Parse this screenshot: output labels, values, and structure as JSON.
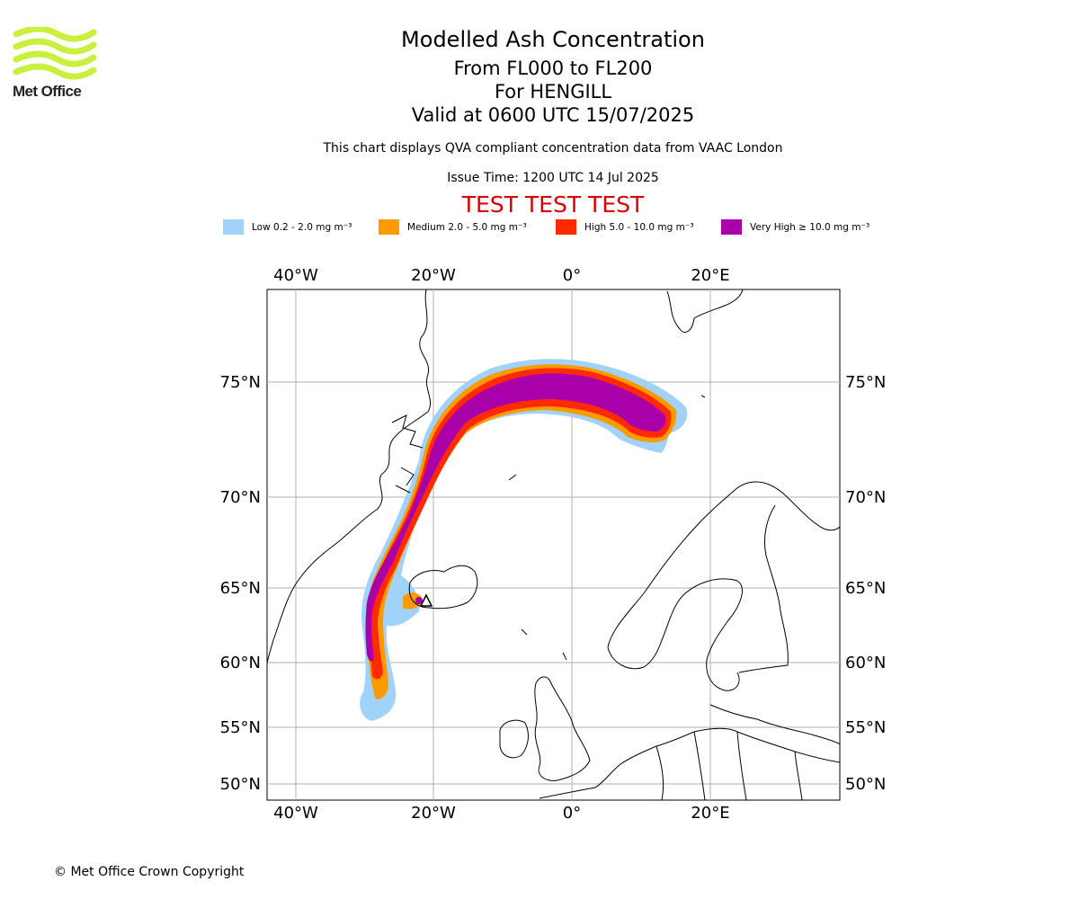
{
  "logo": {
    "text": "Met Office",
    "color": "#c8f03c"
  },
  "title": "Modelled Ash Concentration",
  "flight_levels": "From FL000 to FL200",
  "volcano": "For HENGILL",
  "valid_time": "Valid at 0600 UTC 15/07/2025",
  "subtitle": "This chart displays QVA compliant concentration data from VAAC London",
  "issue_time": "Issue Time: 1200 UTC 14 Jul 2025",
  "test_banner": "TEST TEST TEST",
  "legend": [
    {
      "label": "Low 0.2 - 2.0 mg m⁻³",
      "color": "#a0d2fa"
    },
    {
      "label": "Medium 2.0 - 5.0 mg m⁻³",
      "color": "#fc9a00"
    },
    {
      "label": "High 5.0 - 10.0 mg m⁻³",
      "color": "#ff2a00"
    },
    {
      "label": "Very High ≥ 10.0 mg m⁻³",
      "color": "#aa00aa"
    }
  ],
  "map": {
    "lon_labels": [
      "40°W",
      "20°W",
      "0°",
      "20°E"
    ],
    "lat_labels": [
      "75°N",
      "70°N",
      "65°N",
      "60°N",
      "55°N",
      "50°N"
    ]
  },
  "copyright": "© Met Office Crown Copyright"
}
